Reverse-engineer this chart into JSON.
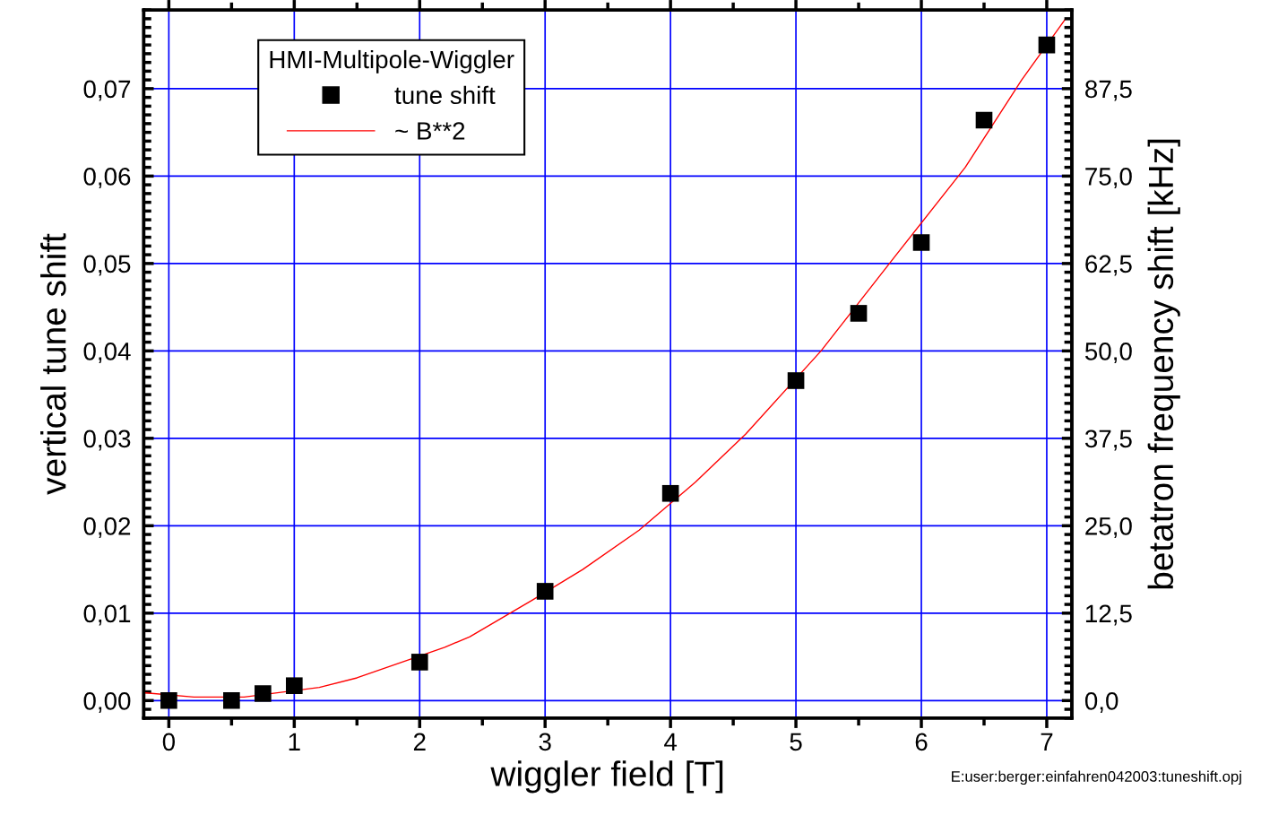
{
  "chart_data": {
    "type": "scatter",
    "xlabel": "wiggler field [T]",
    "ylabel": "vertical tune shift",
    "y2label": "betatron frequency shift [kHz]",
    "legend_title": "HMI-Multipole-Wiggler",
    "legend": "top left",
    "grid": true,
    "marker": "square",
    "xlim": [
      -0.2,
      7.2
    ],
    "xticks": [
      0,
      1,
      2,
      3,
      4,
      5,
      6,
      7
    ],
    "ylim": [
      -0.002,
      0.079
    ],
    "yticks": [
      {
        "value": 0,
        "label": "0,00"
      },
      {
        "value": 0.01,
        "label": "0,01"
      },
      {
        "value": 0.02,
        "label": "0,02"
      },
      {
        "value": 0.03,
        "label": "0,03"
      },
      {
        "value": 0.04,
        "label": "0,04"
      },
      {
        "value": 0.05,
        "label": "0,05"
      },
      {
        "value": 0.06,
        "label": "0,06"
      },
      {
        "value": 0.07,
        "label": "0,07"
      }
    ],
    "y2lim": [
      -2.5,
      98.75
    ],
    "y2ticks": [
      {
        "value": 0,
        "label": "0,0"
      },
      {
        "value": 12.5,
        "label": "12,5"
      },
      {
        "value": 25,
        "label": "25,0"
      },
      {
        "value": 37.5,
        "label": "37,5"
      },
      {
        "value": 50,
        "label": "50,0"
      },
      {
        "value": 62.5,
        "label": "62,5"
      },
      {
        "value": 75,
        "label": "75,0"
      },
      {
        "value": 87.5,
        "label": "87,5"
      }
    ],
    "series": [
      {
        "name": "tune shift",
        "color": "#000000",
        "x": [
          0,
          0.5,
          0.75,
          1,
          2,
          3,
          4,
          5,
          5.5,
          6,
          6.5,
          7
        ],
        "values": [
          0.0,
          0.0,
          0.0008,
          0.0017,
          0.0044,
          0.0125,
          0.0237,
          0.0366,
          0.0443,
          0.0524,
          0.0664,
          0.075
        ]
      },
      {
        "name": "~ B**2",
        "type": "line",
        "color": "#ff0000",
        "marker": "none",
        "x": [
          -0.2,
          0.2,
          0.6,
          1.2,
          1.5,
          2.2,
          2.4,
          2.9,
          3.3,
          3.75,
          4.2,
          4.6,
          5.2,
          5.8,
          6.35,
          6.8,
          7.15
        ],
        "values": [
          0.0009,
          0.0004,
          0.0004,
          0.0015,
          0.0026,
          0.0061,
          0.0073,
          0.0115,
          0.015,
          0.0195,
          0.025,
          0.0305,
          0.04,
          0.051,
          0.061,
          0.071,
          0.078
        ]
      }
    ],
    "annotations": [
      "E:user:berger:einfahren042003:tuneshift.opj"
    ]
  }
}
